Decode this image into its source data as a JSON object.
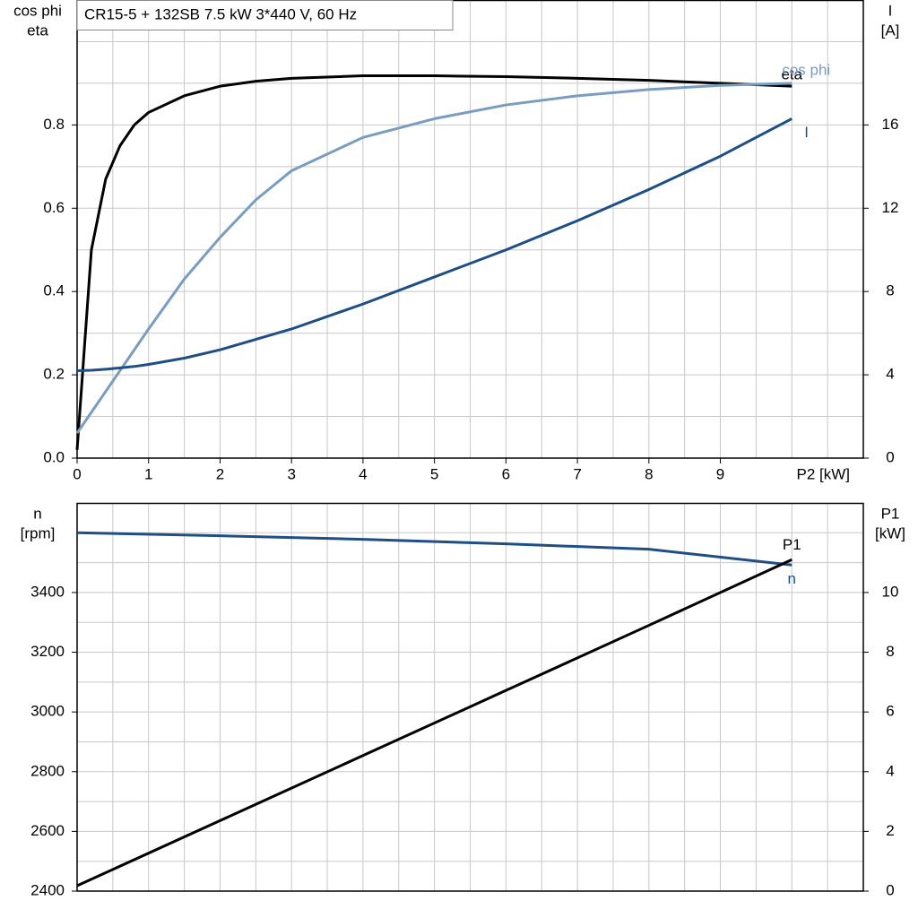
{
  "chart_data": [
    {
      "type": "line",
      "title": "CR15-5 + 132SB   7.5 kW   3*440 V, 60 Hz",
      "ylabel": [
        "cos phi",
        "eta"
      ],
      "y2label": [
        "I",
        "[A]"
      ],
      "xlabel": "P2 [kW]",
      "xlim": [
        0,
        11
      ],
      "xticks": [
        0,
        1,
        2,
        3,
        4,
        5,
        6,
        7,
        8,
        9
      ],
      "xgrid": [
        0.5,
        1,
        1.5,
        2,
        2.5,
        3,
        3.5,
        4,
        4.5,
        5,
        5.5,
        6,
        6.5,
        7,
        7.5,
        8,
        8.5,
        9,
        9.5,
        10,
        10.5
      ],
      "ylim": [
        0,
        1.1
      ],
      "yticks": [
        {
          "value": 0,
          "label": "0.0"
        },
        0.2,
        0.4,
        0.6,
        0.8
      ],
      "ygrid": [
        0.1,
        0.2,
        0.3,
        0.4,
        0.5,
        0.6,
        0.7,
        0.8,
        0.9,
        1.0
      ],
      "y2lim": [
        0,
        22
      ],
      "y2ticks": [
        0,
        4,
        8,
        12,
        16
      ],
      "x": [
        0,
        0.2,
        0.4,
        0.6,
        0.8,
        1,
        1.5,
        2,
        2.5,
        3,
        4,
        5,
        6,
        7,
        8,
        9,
        10
      ],
      "series": [
        {
          "name": "eta",
          "color": "#000000",
          "values": [
            0.02,
            0.5,
            0.67,
            0.75,
            0.8,
            0.83,
            0.87,
            0.893,
            0.905,
            0.912,
            0.918,
            0.918,
            0.916,
            0.912,
            0.907,
            0.9,
            0.893
          ]
        },
        {
          "name": "cos phi",
          "color": "#7a9cbf",
          "values": [
            0.06,
            0.11,
            0.16,
            0.21,
            0.26,
            0.31,
            0.43,
            0.53,
            0.62,
            0.69,
            0.77,
            0.815,
            0.848,
            0.87,
            0.885,
            0.895,
            0.9
          ]
        },
        {
          "name": "I",
          "color": "#1f4e85",
          "axis": "y2",
          "values": [
            4.2,
            4.22,
            4.27,
            4.33,
            4.4,
            4.5,
            4.8,
            5.2,
            5.7,
            6.2,
            7.4,
            8.7,
            10.0,
            11.4,
            12.9,
            14.5,
            16.3
          ]
        }
      ]
    },
    {
      "type": "line",
      "ylabel": [
        "n",
        "[rpm]"
      ],
      "y2label": [
        "P1",
        "[kW]"
      ],
      "xlim": [
        0,
        11
      ],
      "xgrid": [
        0.5,
        1,
        1.5,
        2,
        2.5,
        3,
        3.5,
        4,
        4.5,
        5,
        5.5,
        6,
        6.5,
        7,
        7.5,
        8,
        8.5,
        9,
        9.5,
        10,
        10.5
      ],
      "ylim": [
        2400,
        3700
      ],
      "yticks": [
        2400,
        2600,
        2800,
        3000,
        3200,
        3400
      ],
      "ygrid": [
        2500,
        2600,
        2700,
        2800,
        2900,
        3000,
        3100,
        3200,
        3300,
        3400,
        3500,
        3600
      ],
      "y2lim": [
        0,
        13
      ],
      "y2ticks": [
        0,
        2,
        4,
        6,
        8,
        10
      ],
      "x": [
        0,
        2,
        4,
        6,
        8,
        10
      ],
      "series": [
        {
          "name": "n",
          "color": "#1f4e85",
          "values": [
            3600,
            3590,
            3578,
            3563,
            3545,
            3492
          ]
        },
        {
          "name": "P1",
          "color": "#000000",
          "axis": "y2",
          "values": [
            0.18,
            2.36,
            4.54,
            6.72,
            8.9,
            11.1
          ]
        }
      ]
    }
  ]
}
